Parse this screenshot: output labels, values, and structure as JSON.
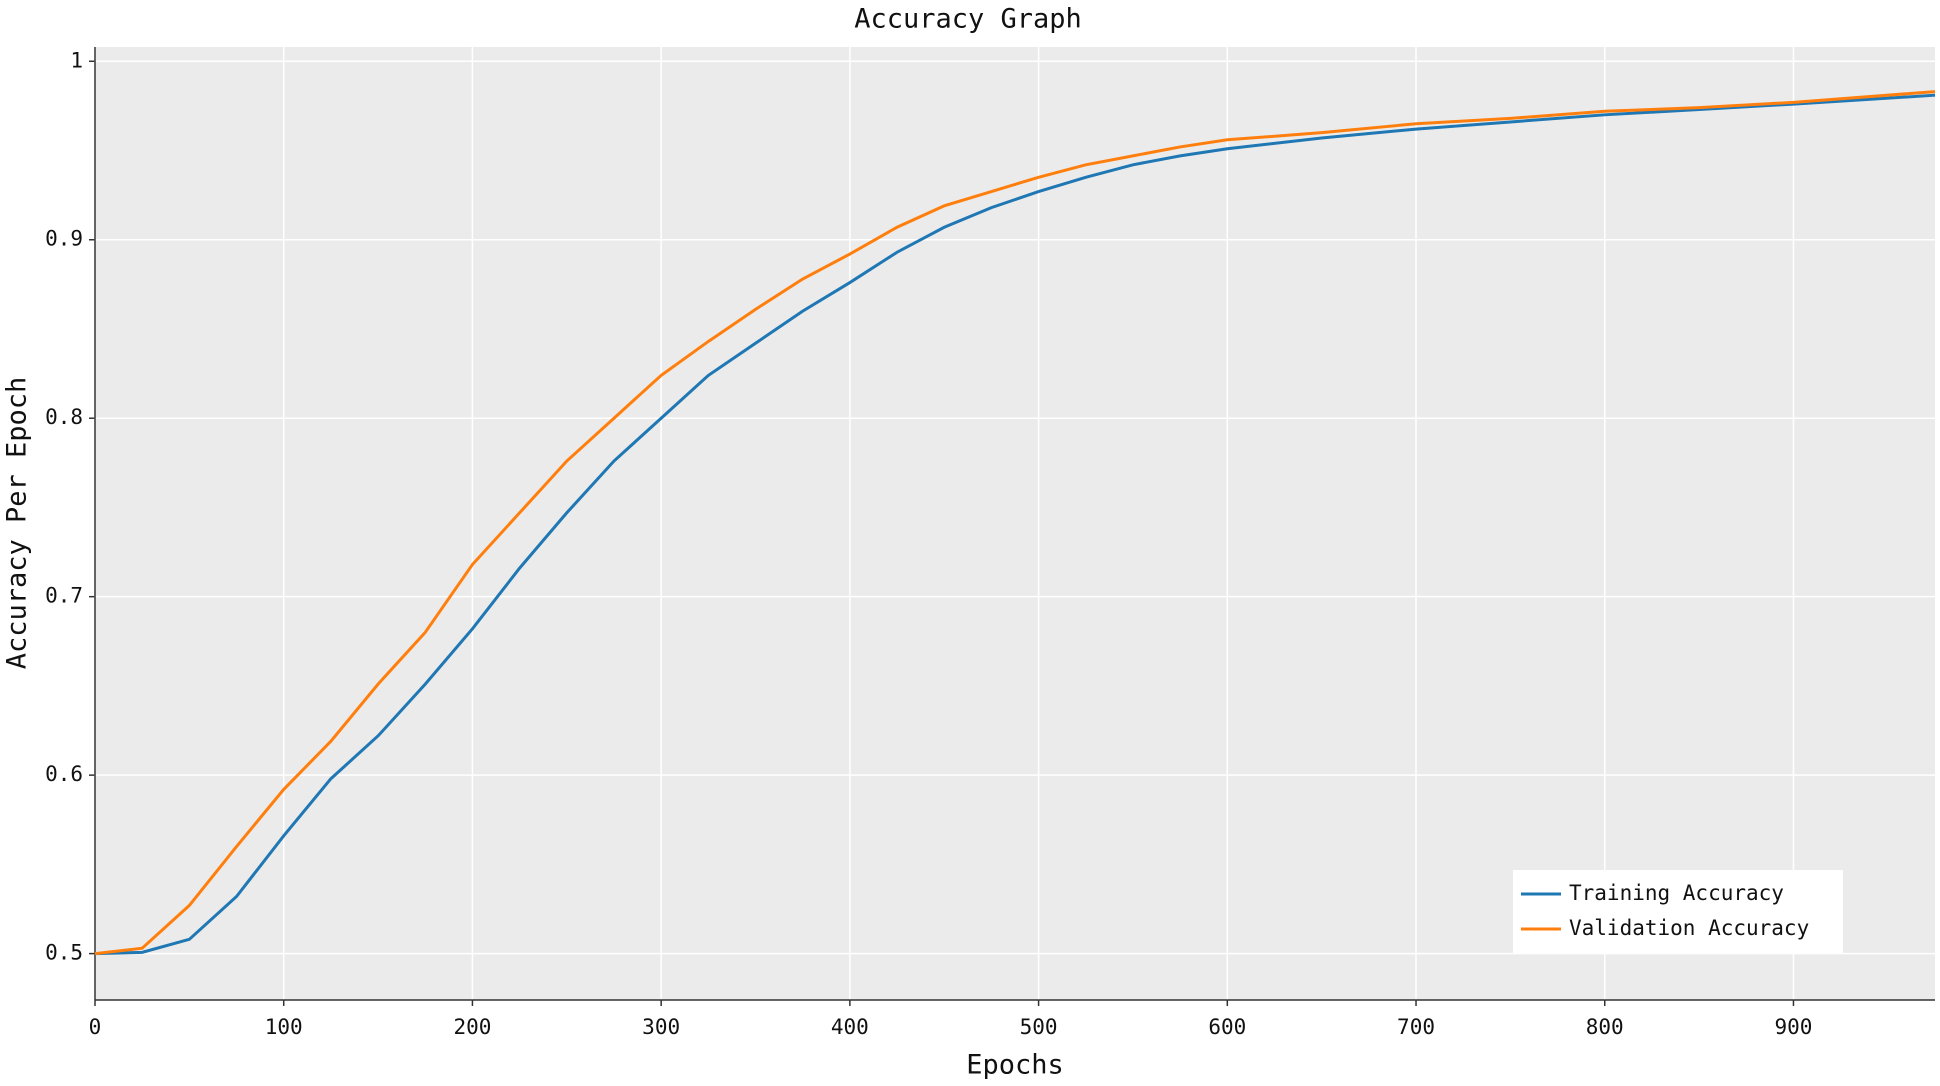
{
  "chart_data": {
    "type": "line",
    "title": "Accuracy Graph",
    "x_label": "Epochs",
    "y_label": "Accuracy Per Epoch",
    "x": [
      0,
      25,
      50,
      75,
      100,
      125,
      150,
      175,
      200,
      225,
      250,
      275,
      300,
      325,
      350,
      375,
      400,
      425,
      450,
      475,
      500,
      525,
      550,
      575,
      600,
      650,
      700,
      750,
      800,
      850,
      900,
      975
    ],
    "series": [
      {
        "name": "Training Accuracy",
        "color": "#1f77b4",
        "values": [
          0.5,
          0.5007,
          0.508,
          0.532,
          0.566,
          0.598,
          0.622,
          0.651,
          0.682,
          0.716,
          0.747,
          0.776,
          0.8,
          0.824,
          0.842,
          0.86,
          0.876,
          0.893,
          0.907,
          0.918,
          0.927,
          0.935,
          0.942,
          0.947,
          0.951,
          0.957,
          0.962,
          0.966,
          0.97,
          0.973,
          0.976,
          0.981
        ]
      },
      {
        "name": "Validation Accuracy",
        "color": "#ff7f0e",
        "values": [
          0.5,
          0.503,
          0.527,
          0.56,
          0.592,
          0.619,
          0.651,
          0.68,
          0.718,
          0.747,
          0.776,
          0.8,
          0.824,
          0.843,
          0.861,
          0.878,
          0.892,
          0.907,
          0.919,
          0.927,
          0.935,
          0.942,
          0.947,
          0.952,
          0.956,
          0.96,
          0.965,
          0.968,
          0.972,
          0.974,
          0.977,
          0.983
        ]
      }
    ],
    "xlim": [
      0,
      975
    ],
    "ylim": [
      0.474,
      1.008
    ],
    "xticks": [
      0,
      100,
      200,
      300,
      400,
      500,
      600,
      700,
      800,
      900
    ],
    "yticks": [
      0.5,
      0.6,
      0.7,
      0.8,
      0.9,
      1
    ],
    "grid": true,
    "legend_position": "lower right"
  }
}
